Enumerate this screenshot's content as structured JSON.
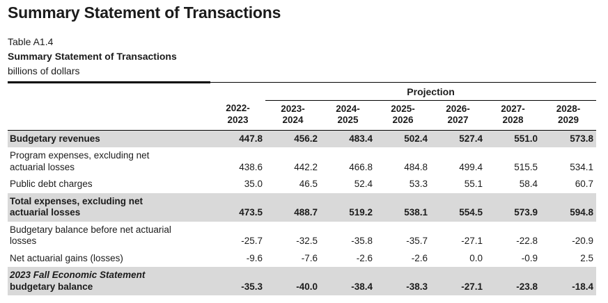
{
  "page": {
    "title": "Summary Statement of Transactions"
  },
  "caption": {
    "table_number": "Table A1.4",
    "table_title": "Summary Statement of Transactions",
    "units": "billions of dollars"
  },
  "colors": {
    "row_highlight": "#d9d9d9",
    "text": "#1b1b1b",
    "rule": "#000000"
  },
  "table": {
    "group_header": "Projection",
    "columns": [
      {
        "line1": "2022-",
        "line2": "2023"
      },
      {
        "line1": "2023-",
        "line2": "2024"
      },
      {
        "line1": "2024-",
        "line2": "2025"
      },
      {
        "line1": "2025-",
        "line2": "2026"
      },
      {
        "line1": "2026-",
        "line2": "2027"
      },
      {
        "line1": "2027-",
        "line2": "2028"
      },
      {
        "line1": "2028-",
        "line2": "2029"
      }
    ],
    "rows": [
      {
        "label_lines": [
          "Budgetary revenues"
        ],
        "highlight": true,
        "italic_first": false,
        "values": [
          "447.8",
          "456.2",
          "483.4",
          "502.4",
          "527.4",
          "551.0",
          "573.8"
        ]
      },
      {
        "label_lines": [
          "Program expenses, excluding net",
          "actuarial losses"
        ],
        "highlight": false,
        "italic_first": false,
        "values": [
          "438.6",
          "442.2",
          "466.8",
          "484.8",
          "499.4",
          "515.5",
          "534.1"
        ]
      },
      {
        "label_lines": [
          "Public debt charges"
        ],
        "highlight": false,
        "italic_first": false,
        "values": [
          "35.0",
          "46.5",
          "52.4",
          "53.3",
          "55.1",
          "58.4",
          "60.7"
        ]
      },
      {
        "label_lines": [
          "Total expenses, excluding net",
          "actuarial losses"
        ],
        "highlight": true,
        "italic_first": false,
        "values": [
          "473.5",
          "488.7",
          "519.2",
          "538.1",
          "554.5",
          "573.9",
          "594.8"
        ]
      },
      {
        "label_lines": [
          "Budgetary balance before net actuarial",
          "losses"
        ],
        "highlight": false,
        "italic_first": false,
        "values": [
          "-25.7",
          "-32.5",
          "-35.8",
          "-35.7",
          "-27.1",
          "-22.8",
          "-20.9"
        ]
      },
      {
        "label_lines": [
          "Net actuarial gains (losses)"
        ],
        "highlight": false,
        "italic_first": false,
        "values": [
          "-9.6",
          "-7.6",
          "-2.6",
          "-2.6",
          "0.0",
          "-0.9",
          "2.5"
        ]
      },
      {
        "label_lines": [
          "2023 Fall Economic Statement",
          "budgetary balance"
        ],
        "highlight": true,
        "italic_first": true,
        "values": [
          "-35.3",
          "-40.0",
          "-38.4",
          "-38.3",
          "-27.1",
          "-23.8",
          "-18.4"
        ]
      }
    ]
  }
}
